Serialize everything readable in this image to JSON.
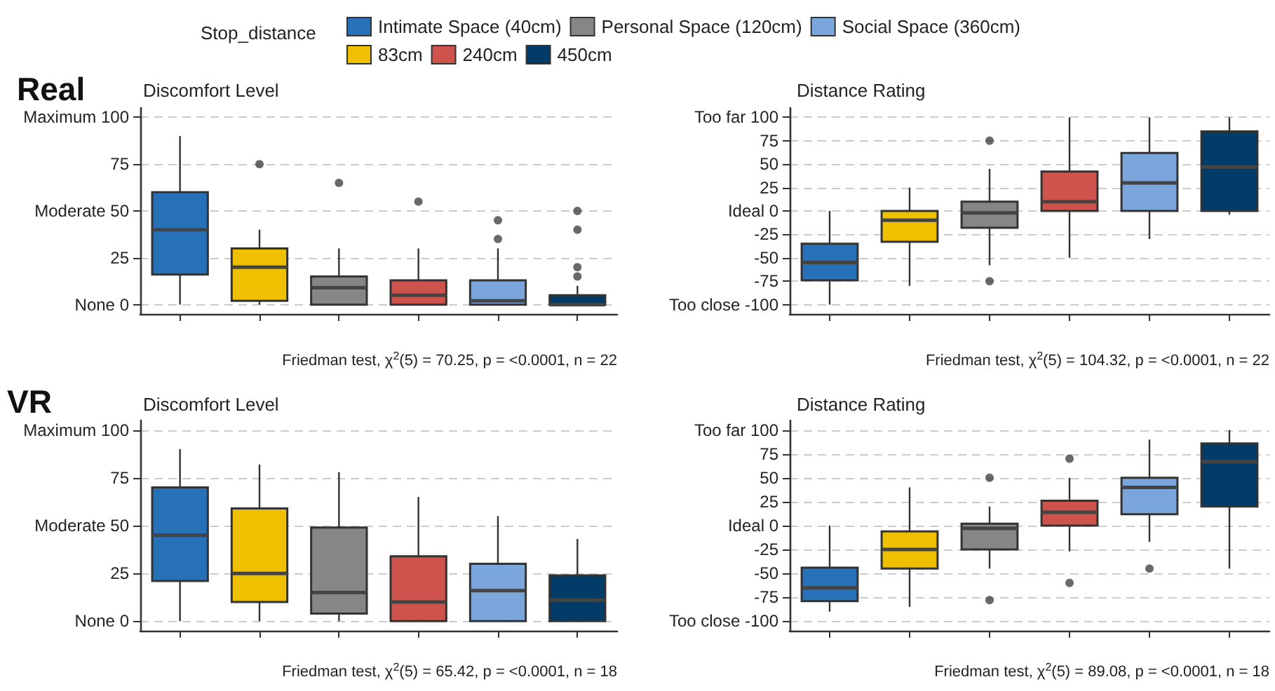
{
  "chart_data": [
    {
      "type": "box",
      "title": "Discomfort Level",
      "legend_title": "Stop_distance",
      "legend": "top",
      "grid": "y",
      "tick_labels": "y",
      "categories": [
        null,
        null,
        null,
        null,
        null,
        null
      ],
      "ylim": [
        -5,
        105
      ],
      "yticks": [
        {
          "value": 0,
          "label": "None 0"
        },
        25,
        {
          "value": 50,
          "label": "Moderate 50"
        },
        75,
        {
          "value": 100,
          "label": "Maximum 100"
        }
      ],
      "annotations": [
        "Real",
        "Friedman test, χ$^{2}$(5) = 70.25, p = <0.0001, n = 22"
      ],
      "series": [
        {
          "name": "Intimate Space (40cm)",
          "color": "#2671b8",
          "boxes": [
            {
              "low": 0,
              "q1": 16,
              "median": 40,
              "q3": 60,
              "high": 90
            },
            null,
            null,
            null,
            null,
            null
          ]
        },
        {
          "name": "83cm",
          "color": "#efc000",
          "boxes": [
            null,
            {
              "low": 0,
              "q1": 2,
              "median": 20,
              "q3": 30,
              "high": 40,
              "outliers": [
                75
              ]
            },
            null,
            null,
            null,
            null
          ]
        },
        {
          "name": "Personal Space (120cm)",
          "color": "#868686",
          "boxes": [
            null,
            null,
            {
              "low": 0,
              "q1": 0,
              "median": 9,
              "q3": 15,
              "high": 30,
              "outliers": [
                65
              ]
            },
            null,
            null,
            null
          ]
        },
        {
          "name": "240cm",
          "color": "#cd534c",
          "boxes": [
            null,
            null,
            null,
            {
              "low": 0,
              "q1": 0,
              "median": 5,
              "q3": 13,
              "high": 30,
              "outliers": [
                55
              ]
            },
            null,
            null
          ]
        },
        {
          "name": "Social Space (360cm)",
          "color": "#7aa6dc",
          "boxes": [
            null,
            null,
            null,
            null,
            {
              "low": 0,
              "q1": 0,
              "median": 2,
              "q3": 13,
              "high": 30,
              "outliers": [
                35,
                45
              ]
            },
            null
          ]
        },
        {
          "name": "450cm",
          "color": "#003c67",
          "boxes": [
            null,
            null,
            null,
            null,
            null,
            {
              "low": 0,
              "q1": 0,
              "median": 0,
              "q3": 5,
              "high": 10,
              "outliers": [
                15,
                20,
                40,
                50
              ]
            }
          ]
        }
      ]
    },
    {
      "type": "box",
      "title": "Distance Rating",
      "legend": false,
      "grid": "y",
      "tick_labels": "y",
      "categories": [
        null,
        null,
        null,
        null,
        null,
        null
      ],
      "ylim": [
        -110,
        110
      ],
      "yticks": [
        {
          "value": -100,
          "label": "Too close -100"
        },
        -75,
        -50,
        -25,
        {
          "value": 0,
          "label": "Ideal 0"
        },
        25,
        50,
        75,
        {
          "value": 100,
          "label": "Too far 100"
        }
      ],
      "annotations": [
        "Friedman test, χ$^{2}$(5) = 104.32, p = <0.0001, n = 22"
      ],
      "series": [
        {
          "color": "#2671b8",
          "boxes": [
            {
              "low": -100,
              "q1": -74,
              "median": -55,
              "q3": -35,
              "high": 0
            },
            null,
            null,
            null,
            null,
            null
          ]
        },
        {
          "color": "#efc000",
          "boxes": [
            null,
            {
              "low": -80,
              "q1": -33,
              "median": -10,
              "q3": 0,
              "high": 25
            },
            null,
            null,
            null,
            null
          ]
        },
        {
          "color": "#868686",
          "boxes": [
            null,
            null,
            {
              "low": -58,
              "q1": -18,
              "median": -2,
              "q3": 10,
              "high": 45,
              "outliers": [
                75,
                -75
              ]
            },
            null,
            null,
            null
          ]
        },
        {
          "color": "#cd534c",
          "boxes": [
            null,
            null,
            null,
            {
              "low": -50,
              "q1": 0,
              "median": 10,
              "q3": 42,
              "high": 100
            },
            null,
            null
          ]
        },
        {
          "color": "#7aa6dc",
          "boxes": [
            null,
            null,
            null,
            null,
            {
              "low": -30,
              "q1": 0,
              "median": 30,
              "q3": 62,
              "high": 100
            },
            null
          ]
        },
        {
          "color": "#003c67",
          "boxes": [
            null,
            null,
            null,
            null,
            null,
            {
              "low": -4,
              "q1": 0,
              "median": 47,
              "q3": 85,
              "high": 100
            }
          ]
        }
      ]
    },
    {
      "type": "box",
      "title": "Discomfort Level",
      "legend": false,
      "grid": "y",
      "tick_labels": "y",
      "categories": [
        null,
        null,
        null,
        null,
        null,
        null
      ],
      "ylim": [
        -5,
        105
      ],
      "yticks": [
        {
          "value": 0,
          "label": "None 0"
        },
        25,
        {
          "value": 50,
          "label": "Moderate 50"
        },
        75,
        {
          "value": 100,
          "label": "Maximum 100"
        }
      ],
      "annotations": [
        "VR",
        "Friedman test, χ$^{2}$(5) = 65.42, p = <0.0001, n = 18"
      ],
      "series": [
        {
          "color": "#2671b8",
          "boxes": [
            {
              "low": 0,
              "q1": 21,
              "median": 45,
              "q3": 70,
              "high": 90
            },
            null,
            null,
            null,
            null,
            null
          ]
        },
        {
          "color": "#efc000",
          "boxes": [
            null,
            {
              "low": 0,
              "q1": 10,
              "median": 25,
              "q3": 59,
              "high": 82
            },
            null,
            null,
            null,
            null
          ]
        },
        {
          "color": "#868686",
          "boxes": [
            null,
            null,
            {
              "low": 0,
              "q1": 4,
              "median": 15,
              "q3": 49,
              "high": 78
            },
            null,
            null,
            null
          ]
        },
        {
          "color": "#cd534c",
          "boxes": [
            null,
            null,
            null,
            {
              "low": 0,
              "q1": 0,
              "median": 10,
              "q3": 34,
              "high": 65
            },
            null,
            null
          ]
        },
        {
          "color": "#7aa6dc",
          "boxes": [
            null,
            null,
            null,
            null,
            {
              "low": 0,
              "q1": 0,
              "median": 16,
              "q3": 30,
              "high": 55
            },
            null
          ]
        },
        {
          "color": "#003c67",
          "boxes": [
            null,
            null,
            null,
            null,
            null,
            {
              "low": 0,
              "q1": 0,
              "median": 11,
              "q3": 24,
              "high": 43
            }
          ]
        }
      ]
    },
    {
      "type": "box",
      "title": "Distance Rating",
      "legend": false,
      "grid": "y",
      "tick_labels": "y",
      "categories": [
        null,
        null,
        null,
        null,
        null,
        null
      ],
      "ylim": [
        -110,
        110
      ],
      "yticks": [
        {
          "value": -100,
          "label": "Too close -100"
        },
        -75,
        -50,
        -25,
        {
          "value": 0,
          "label": "Ideal 0"
        },
        25,
        50,
        75,
        {
          "value": 100,
          "label": "Too far 100"
        }
      ],
      "annotations": [
        "Friedman test, χ$^{2}$(5) = 89.08, p = <0.0001, n = 18"
      ],
      "series": [
        {
          "color": "#2671b8",
          "boxes": [
            {
              "low": -90,
              "q1": -79,
              "median": -65,
              "q3": -44,
              "high": 0
            },
            null,
            null,
            null,
            null,
            null
          ]
        },
        {
          "color": "#efc000",
          "boxes": [
            null,
            {
              "low": -85,
              "q1": -45,
              "median": -25,
              "q3": -6,
              "high": 40
            },
            null,
            null,
            null,
            null
          ]
        },
        {
          "color": "#868686",
          "boxes": [
            null,
            null,
            {
              "low": -45,
              "q1": -25,
              "median": -3,
              "q3": 2,
              "high": 20,
              "outliers": [
                50,
                -78
              ]
            },
            null,
            null,
            null
          ]
        },
        {
          "color": "#cd534c",
          "boxes": [
            null,
            null,
            null,
            {
              "low": -27,
              "q1": 0,
              "median": 14,
              "q3": 26,
              "high": 50,
              "outliers": [
                70,
                -60
              ]
            },
            null,
            null
          ]
        },
        {
          "color": "#7aa6dc",
          "boxes": [
            null,
            null,
            null,
            null,
            {
              "low": -17,
              "q1": 12,
              "median": 40,
              "q3": 50,
              "high": 90,
              "outliers": [
                -45
              ]
            },
            null
          ]
        },
        {
          "color": "#003c67",
          "boxes": [
            null,
            null,
            null,
            null,
            null,
            {
              "low": -45,
              "q1": 20,
              "median": 67,
              "q3": 86,
              "high": 100
            }
          ]
        }
      ]
    }
  ]
}
